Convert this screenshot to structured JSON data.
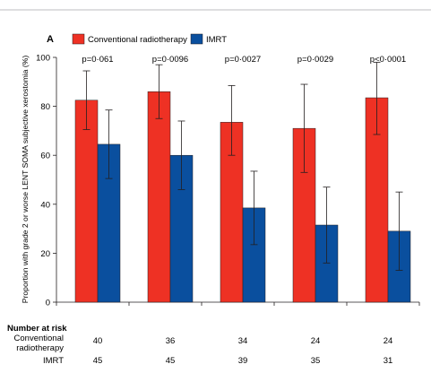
{
  "chart_data": {
    "type": "bar",
    "panel_label": "A",
    "ylabel": "Proportion with grade 2 or worse LENT SOMA subjective xerostomia (%)",
    "ylim": [
      0,
      100
    ],
    "yticks": [
      0,
      20,
      40,
      60,
      80,
      100
    ],
    "legend_position": "top",
    "grid": false,
    "categories": [
      "",
      "",
      "",
      "",
      ""
    ],
    "p_values": [
      "p=0·061",
      "p=0·0096",
      "p=0·0027",
      "p=0·0029",
      "p<0·0001"
    ],
    "series": [
      {
        "name": "Conventional radiotherapy",
        "color": "#ee3124",
        "values": [
          82.5,
          86,
          73.5,
          71,
          83.5
        ],
        "error_low": [
          70.5,
          75,
          60,
          53,
          68.5
        ],
        "error_high": [
          94.5,
          97,
          88.5,
          89,
          98
        ]
      },
      {
        "name": "IMRT",
        "color": "#0a4f9e",
        "values": [
          64.5,
          60,
          38.5,
          31.5,
          29
        ],
        "error_low": [
          50.5,
          46,
          23.5,
          16,
          13
        ],
        "error_high": [
          78.5,
          74,
          53.5,
          47,
          45
        ]
      }
    ]
  },
  "risk_table": {
    "title": "Number at risk",
    "rows": [
      {
        "label_line1": "Conventional",
        "label_line2": "radiotherapy",
        "values": [
          "40",
          "36",
          "34",
          "24",
          "24"
        ]
      },
      {
        "label_line1": "IMRT",
        "label_line2": "",
        "values": [
          "45",
          "45",
          "39",
          "35",
          "31"
        ]
      }
    ]
  }
}
